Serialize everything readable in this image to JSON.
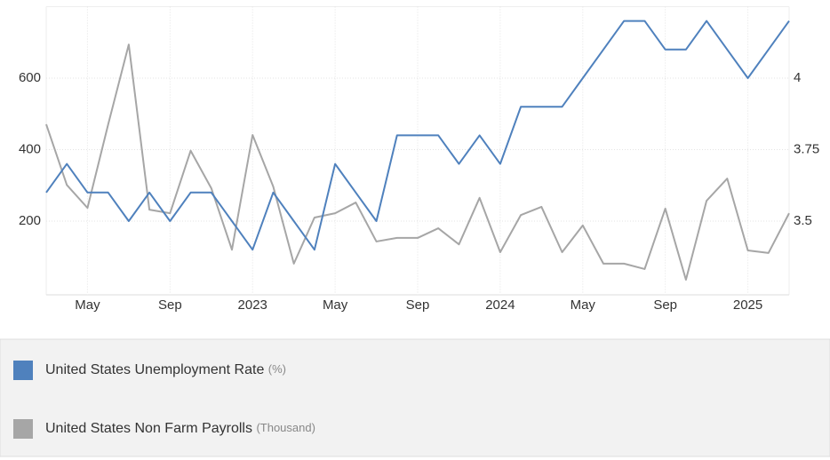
{
  "chart_data": {
    "type": "line",
    "categories": [
      null,
      null,
      "May",
      null,
      null,
      null,
      "Sep",
      null,
      null,
      null,
      "2023",
      null,
      null,
      null,
      "May",
      null,
      null,
      null,
      "Sep",
      null,
      null,
      null,
      "2024",
      null,
      null,
      null,
      "May",
      null,
      null,
      null,
      "Sep",
      null,
      null,
      null,
      "2025",
      null,
      null
    ],
    "series": [
      {
        "name": "United States Unemployment Rate",
        "unit": "(%)",
        "color": "#4f81bd",
        "axis": "y2",
        "values": [
          3.6,
          3.7,
          3.6,
          3.6,
          3.5,
          3.6,
          3.5,
          3.6,
          3.6,
          3.5,
          3.4,
          3.6,
          3.5,
          3.4,
          3.7,
          3.6,
          3.5,
          3.8,
          3.8,
          3.8,
          3.7,
          3.8,
          3.7,
          3.9,
          3.9,
          3.9,
          4.0,
          4.1,
          4.2,
          4.2,
          4.1,
          4.1,
          4.2,
          4.1,
          4.0,
          4.1,
          4.2
        ]
      },
      {
        "name": "United States Non Farm Payrolls",
        "unit": "(Thousand)",
        "color": "#a6a6a6",
        "values": [
          471,
          301,
          237,
          470,
          694,
          232,
          222,
          397,
          292,
          120,
          441,
          297,
          81,
          210,
          222,
          252,
          143,
          153,
          153,
          180,
          135,
          265,
          113,
          217,
          240,
          113,
          188,
          81,
          81,
          66,
          235,
          36,
          257,
          319,
          118,
          111,
          222
        ]
      }
    ],
    "ylim": [
      0,
      800
    ],
    "yticks": [
      200,
      400,
      600
    ],
    "y2lim": [
      3.25,
      4.25
    ],
    "y2ticks": [
      3.5,
      3.75,
      4
    ],
    "grid": true
  }
}
